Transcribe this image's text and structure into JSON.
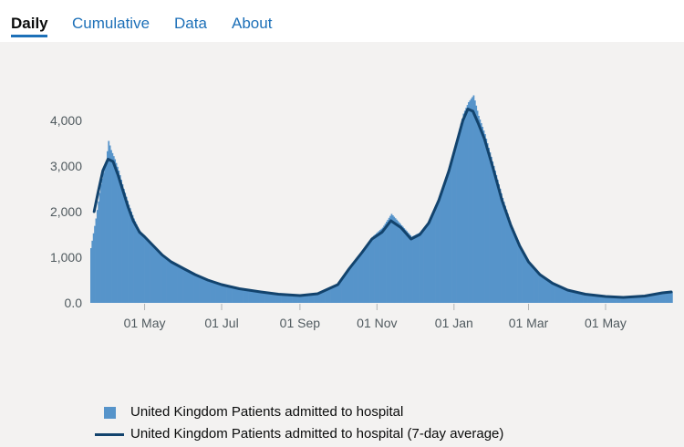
{
  "tabs": [
    {
      "label": "Daily",
      "active": true
    },
    {
      "label": "Cumulative",
      "active": false
    },
    {
      "label": "Data",
      "active": false
    },
    {
      "label": "About",
      "active": false
    }
  ],
  "colors": {
    "bar": "#5694ca",
    "line": "#12436d",
    "accent": "#1d70b8"
  },
  "chart_data": {
    "type": "bar",
    "title": "",
    "xlabel": "",
    "ylabel": "",
    "ylim": [
      0,
      4600
    ],
    "y_ticks": [
      "0.0",
      "1,000",
      "2,000",
      "3,000",
      "4,000"
    ],
    "y_tick_values": [
      0,
      1000,
      2000,
      3000,
      4000
    ],
    "x_ticks": [
      "01 May",
      "01 Jul",
      "01 Sep",
      "01 Nov",
      "01 Jan",
      "01 Mar",
      "01 May"
    ],
    "x_tick_dates": [
      "2020-05-01",
      "2020-07-01",
      "2020-09-01",
      "2020-11-01",
      "2021-01-01",
      "2021-03-01",
      "2021-05-01"
    ],
    "x_range": [
      "2020-03-19",
      "2021-06-22"
    ],
    "grid": false,
    "legend_position": "bottom",
    "series": [
      {
        "name": "United Kingdom Patients admitted to hospital",
        "kind": "bar",
        "points": [
          [
            "2020-03-19",
            1200
          ],
          [
            "2020-03-23",
            1850
          ],
          [
            "2020-03-27",
            2600
          ],
          [
            "2020-03-31",
            3100
          ],
          [
            "2020-04-02",
            3550
          ],
          [
            "2020-04-04",
            3350
          ],
          [
            "2020-04-07",
            3150
          ],
          [
            "2020-04-10",
            2900
          ],
          [
            "2020-04-14",
            2500
          ],
          [
            "2020-04-18",
            2150
          ],
          [
            "2020-04-22",
            1850
          ],
          [
            "2020-04-26",
            1600
          ],
          [
            "2020-05-01",
            1450
          ],
          [
            "2020-05-08",
            1250
          ],
          [
            "2020-05-15",
            1050
          ],
          [
            "2020-05-22",
            900
          ],
          [
            "2020-06-01",
            720
          ],
          [
            "2020-06-10",
            600
          ],
          [
            "2020-06-20",
            480
          ],
          [
            "2020-07-01",
            390
          ],
          [
            "2020-07-15",
            300
          ],
          [
            "2020-08-01",
            230
          ],
          [
            "2020-08-15",
            180
          ],
          [
            "2020-09-01",
            150
          ],
          [
            "2020-09-15",
            200
          ],
          [
            "2020-10-01",
            420
          ],
          [
            "2020-10-10",
            780
          ],
          [
            "2020-10-20",
            1150
          ],
          [
            "2020-10-28",
            1450
          ],
          [
            "2020-11-05",
            1650
          ],
          [
            "2020-11-12",
            1950
          ],
          [
            "2020-11-20",
            1700
          ],
          [
            "2020-11-28",
            1450
          ],
          [
            "2020-12-05",
            1550
          ],
          [
            "2020-12-12",
            1800
          ],
          [
            "2020-12-20",
            2300
          ],
          [
            "2020-12-28",
            3000
          ],
          [
            "2021-01-03",
            3600
          ],
          [
            "2021-01-08",
            4150
          ],
          [
            "2021-01-12",
            4400
          ],
          [
            "2021-01-16",
            4550
          ],
          [
            "2021-01-20",
            4100
          ],
          [
            "2021-01-25",
            3700
          ],
          [
            "2021-02-01",
            3000
          ],
          [
            "2021-02-08",
            2300
          ],
          [
            "2021-02-15",
            1700
          ],
          [
            "2021-02-22",
            1250
          ],
          [
            "2021-03-01",
            900
          ],
          [
            "2021-03-10",
            600
          ],
          [
            "2021-03-20",
            420
          ],
          [
            "2021-04-01",
            280
          ],
          [
            "2021-04-15",
            190
          ],
          [
            "2021-05-01",
            140
          ],
          [
            "2021-05-15",
            120
          ],
          [
            "2021-06-01",
            150
          ],
          [
            "2021-06-15",
            220
          ],
          [
            "2021-06-22",
            240
          ]
        ]
      },
      {
        "name": "United Kingdom Patients admitted to hospital (7-day average)",
        "kind": "line",
        "points": [
          [
            "2020-03-22",
            2000
          ],
          [
            "2020-03-25",
            2400
          ],
          [
            "2020-03-29",
            2900
          ],
          [
            "2020-04-02",
            3150
          ],
          [
            "2020-04-06",
            3100
          ],
          [
            "2020-04-10",
            2800
          ],
          [
            "2020-04-14",
            2450
          ],
          [
            "2020-04-18",
            2100
          ],
          [
            "2020-04-22",
            1800
          ],
          [
            "2020-04-27",
            1550
          ],
          [
            "2020-05-01",
            1450
          ],
          [
            "2020-05-08",
            1250
          ],
          [
            "2020-05-15",
            1050
          ],
          [
            "2020-05-22",
            900
          ],
          [
            "2020-06-01",
            750
          ],
          [
            "2020-06-10",
            620
          ],
          [
            "2020-06-20",
            500
          ],
          [
            "2020-07-01",
            400
          ],
          [
            "2020-07-15",
            310
          ],
          [
            "2020-08-01",
            240
          ],
          [
            "2020-08-15",
            190
          ],
          [
            "2020-09-01",
            160
          ],
          [
            "2020-09-15",
            200
          ],
          [
            "2020-10-01",
            400
          ],
          [
            "2020-10-10",
            750
          ],
          [
            "2020-10-20",
            1100
          ],
          [
            "2020-10-28",
            1400
          ],
          [
            "2020-11-05",
            1550
          ],
          [
            "2020-11-12",
            1800
          ],
          [
            "2020-11-20",
            1650
          ],
          [
            "2020-11-28",
            1400
          ],
          [
            "2020-12-05",
            1500
          ],
          [
            "2020-12-12",
            1750
          ],
          [
            "2020-12-20",
            2250
          ],
          [
            "2020-12-28",
            2900
          ],
          [
            "2021-01-03",
            3500
          ],
          [
            "2021-01-08",
            4000
          ],
          [
            "2021-01-12",
            4250
          ],
          [
            "2021-01-16",
            4200
          ],
          [
            "2021-01-20",
            3950
          ],
          [
            "2021-01-25",
            3600
          ],
          [
            "2021-02-01",
            2950
          ],
          [
            "2021-02-08",
            2250
          ],
          [
            "2021-02-15",
            1700
          ],
          [
            "2021-02-22",
            1250
          ],
          [
            "2021-03-01",
            900
          ],
          [
            "2021-03-10",
            620
          ],
          [
            "2021-03-20",
            430
          ],
          [
            "2021-04-01",
            280
          ],
          [
            "2021-04-15",
            190
          ],
          [
            "2021-05-01",
            140
          ],
          [
            "2021-05-15",
            120
          ],
          [
            "2021-06-01",
            150
          ],
          [
            "2021-06-15",
            220
          ],
          [
            "2021-06-22",
            240
          ]
        ]
      }
    ]
  }
}
